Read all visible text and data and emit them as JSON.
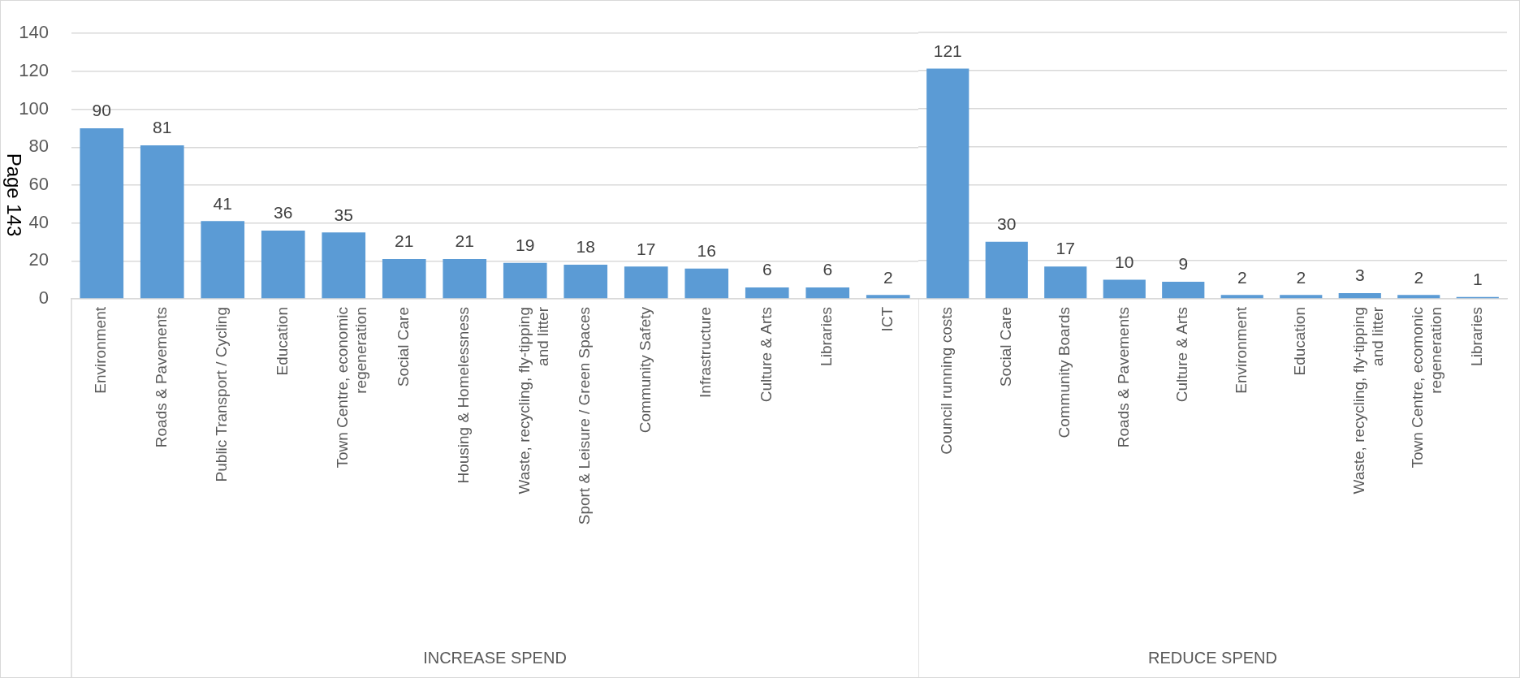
{
  "chart_data": [
    {
      "type": "bar",
      "xlabel": "INCREASE SPEND",
      "categories": [
        "Environment",
        "Roads & Pavements",
        "Public Transport / Cycling",
        "Education",
        "Town Centre, economic\nregeneration",
        "Social Care",
        "Housing & Homelessness",
        "Waste, recycling, fly-tipping\nand litter",
        "Sport & Leisure / Green Spaces",
        "Community Safety",
        "Infrastructure",
        "Culture & Arts",
        "Libraries",
        "ICT"
      ],
      "values": [
        90,
        81,
        41,
        36,
        35,
        21,
        21,
        19,
        18,
        17,
        16,
        6,
        6,
        2
      ],
      "color": "#5b9bd5",
      "ylim": [
        0,
        140
      ],
      "yticks": [
        0,
        20,
        40,
        60,
        80,
        100,
        120,
        140
      ],
      "grid": "y",
      "data_labels": true,
      "annotations": [
        "Page 143"
      ]
    },
    {
      "type": "bar",
      "xlabel": "REDUCE SPEND",
      "categories": [
        "Council running costs",
        "Social Care",
        "Community Boards",
        "Roads & Pavements",
        "Culture & Arts",
        "Environment",
        "Education",
        "Waste, recycling, fly-tipping\nand litter",
        "Town Centre, ecomonic\nregeneration",
        "Libraries"
      ],
      "values": [
        121,
        30,
        17,
        10,
        9,
        2,
        2,
        3,
        2,
        1
      ],
      "color": "#5b9bd5",
      "ylim": [
        0,
        140
      ],
      "yticks": [
        0,
        20,
        40,
        60,
        80,
        100,
        120,
        140
      ],
      "grid": "y",
      "data_labels": true,
      "tick_labels": "x"
    }
  ]
}
